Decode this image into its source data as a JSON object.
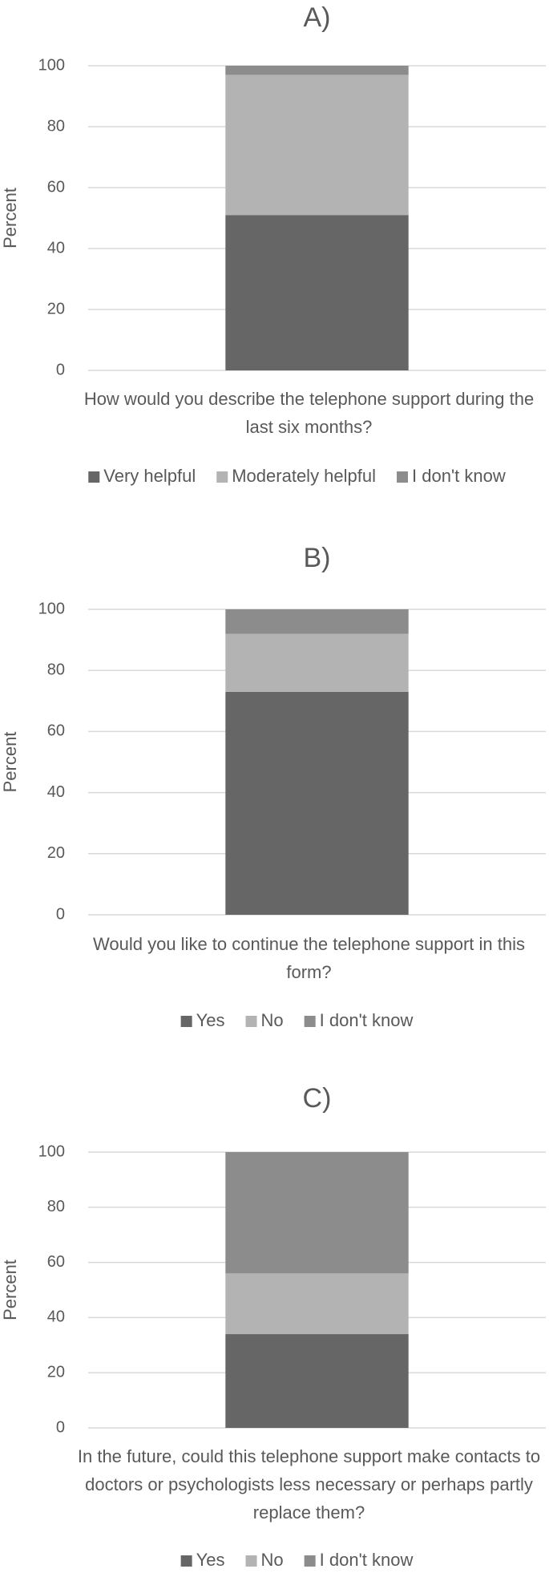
{
  "chart_data": [
    {
      "type": "bar",
      "title": "A)",
      "ylabel": "Percent",
      "categories": [
        "How would you describe the telephone support during the last six months?"
      ],
      "series": [
        {
          "name": "Very helpful",
          "color": "#666666",
          "values": [
            51
          ]
        },
        {
          "name": "Moderately helpful",
          "color": "#b3b3b3",
          "values": [
            46
          ]
        },
        {
          "name": "I don't know",
          "color": "#8c8c8c",
          "values": [
            3
          ]
        }
      ],
      "ylim": [
        0,
        100
      ],
      "yticks": [
        0,
        20,
        40,
        60,
        80,
        100
      ],
      "grid": true,
      "stacked": true,
      "legend": "bottom"
    },
    {
      "type": "bar",
      "title": "B)",
      "ylabel": "Percent",
      "categories": [
        "Would you like to continue the telephone support in this form?"
      ],
      "series": [
        {
          "name": "Yes",
          "color": "#666666",
          "values": [
            73
          ]
        },
        {
          "name": "No",
          "color": "#b3b3b3",
          "values": [
            19
          ]
        },
        {
          "name": "I don't know",
          "color": "#8c8c8c",
          "values": [
            8
          ]
        }
      ],
      "ylim": [
        0,
        100
      ],
      "yticks": [
        0,
        20,
        40,
        60,
        80,
        100
      ],
      "grid": true,
      "stacked": true,
      "legend": "bottom"
    },
    {
      "type": "bar",
      "title": "C)",
      "ylabel": "Percent",
      "categories": [
        "In the future, could this telephone support make contacts to doctors or psychologists less necessary or perhaps partly replace them?"
      ],
      "series": [
        {
          "name": "Yes",
          "color": "#666666",
          "values": [
            34
          ]
        },
        {
          "name": "No",
          "color": "#b3b3b3",
          "values": [
            22
          ]
        },
        {
          "name": "I don't know",
          "color": "#8c8c8c",
          "values": [
            44
          ]
        }
      ],
      "ylim": [
        0,
        100
      ],
      "yticks": [
        0,
        20,
        40,
        60,
        80,
        100
      ],
      "grid": true,
      "stacked": true,
      "legend": "bottom"
    }
  ]
}
